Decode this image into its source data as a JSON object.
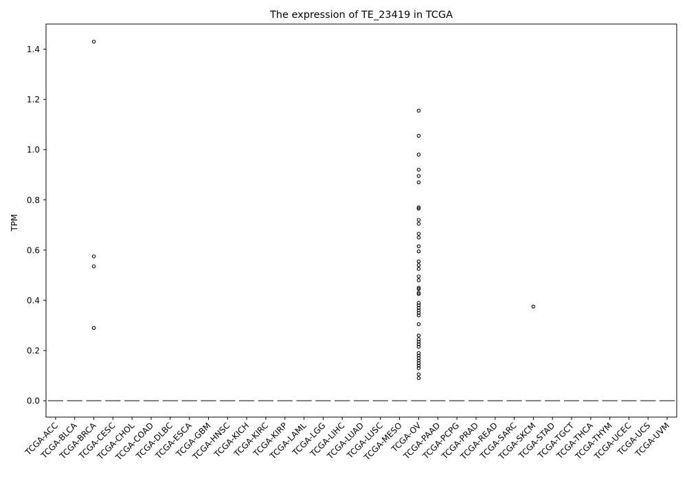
{
  "chart_data": {
    "type": "box",
    "title": "The expression of TE_23419 in TCGA",
    "xlabel": "",
    "ylabel": "TPM",
    "ylim": [
      -0.065,
      1.5
    ],
    "yticks": [
      0.0,
      0.2,
      0.4,
      0.6,
      0.8,
      1.0,
      1.2,
      1.4
    ],
    "ytick_labels": [
      "0.0",
      "0.2",
      "0.4",
      "0.6",
      "0.8",
      "1.0",
      "1.2",
      "1.4"
    ],
    "grid": false,
    "categories": [
      "TCGA-ACC",
      "TCGA-BLCA",
      "TCGA-BRCA",
      "TCGA-CESC",
      "TCGA-CHOL",
      "TCGA-COAD",
      "TCGA-DLBC",
      "TCGA-ESCA",
      "TCGA-GBM",
      "TCGA-HNSC",
      "TCGA-KICH",
      "TCGA-KIRC",
      "TCGA-KIRP",
      "TCGA-LAML",
      "TCGA-LGG",
      "TCGA-LIHC",
      "TCGA-LUAD",
      "TCGA-LUSC",
      "TCGA-MESO",
      "TCGA-OV",
      "TCGA-PAAD",
      "TCGA-PCPG",
      "TCGA-PRAD",
      "TCGA-READ",
      "TCGA-SARC",
      "TCGA-SKCM",
      "TCGA-STAD",
      "TCGA-TGCT",
      "TCGA-THCA",
      "TCGA-THYM",
      "TCGA-UCEC",
      "TCGA-UCS",
      "TCGA-UVM"
    ],
    "medians": [
      0,
      0,
      0,
      0,
      0,
      0,
      0,
      0,
      0,
      0,
      0,
      0,
      0,
      0,
      0,
      0,
      0,
      0,
      0,
      0,
      0,
      0,
      0,
      0,
      0,
      0,
      0,
      0,
      0,
      0,
      0,
      0,
      0
    ],
    "outliers": [
      {
        "category": "TCGA-BRCA",
        "values": [
          1.43,
          0.575,
          0.535,
          0.29
        ]
      },
      {
        "category": "TCGA-OV",
        "values": [
          1.155,
          1.055,
          0.98,
          0.92,
          0.895,
          0.87,
          0.77,
          0.765,
          0.72,
          0.705,
          0.665,
          0.65,
          0.615,
          0.595,
          0.555,
          0.54,
          0.525,
          0.495,
          0.48,
          0.45,
          0.445,
          0.43,
          0.425,
          0.39,
          0.38,
          0.37,
          0.36,
          0.35,
          0.34,
          0.305,
          0.26,
          0.245,
          0.235,
          0.225,
          0.215,
          0.19,
          0.18,
          0.17,
          0.16,
          0.15,
          0.14,
          0.13,
          0.105,
          0.09
        ]
      },
      {
        "category": "TCGA-SKCM",
        "values": [
          0.375
        ]
      }
    ],
    "colors": {
      "axes": "#000000",
      "box": "#555555",
      "outlier": "#000000",
      "background": "#ffffff"
    }
  }
}
